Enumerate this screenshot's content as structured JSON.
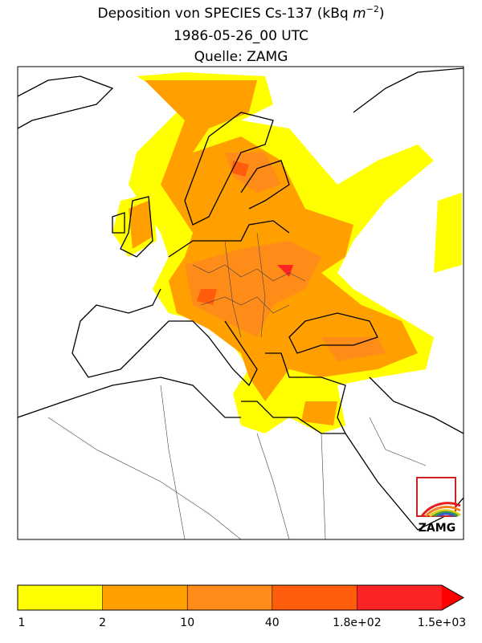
{
  "header": {
    "title_text": "Deposition von  SPECIES Cs-137 (kBq ",
    "title_unit": "m",
    "title_unit_exponent": "−2",
    "title_close": ")",
    "date": "1986-05-26_00 UTC",
    "source": "Quelle: ZAMG"
  },
  "logo": {
    "text": "ZAMG"
  },
  "colorbar": {
    "colors": [
      "#ffff00",
      "#ffa000",
      "#ff8c18",
      "#ff5c0c",
      "#ff2424",
      "#ff0000"
    ],
    "labels": [
      "1",
      "2",
      "10",
      "40",
      "1.8e+02",
      "1.5e+03"
    ]
  }
}
